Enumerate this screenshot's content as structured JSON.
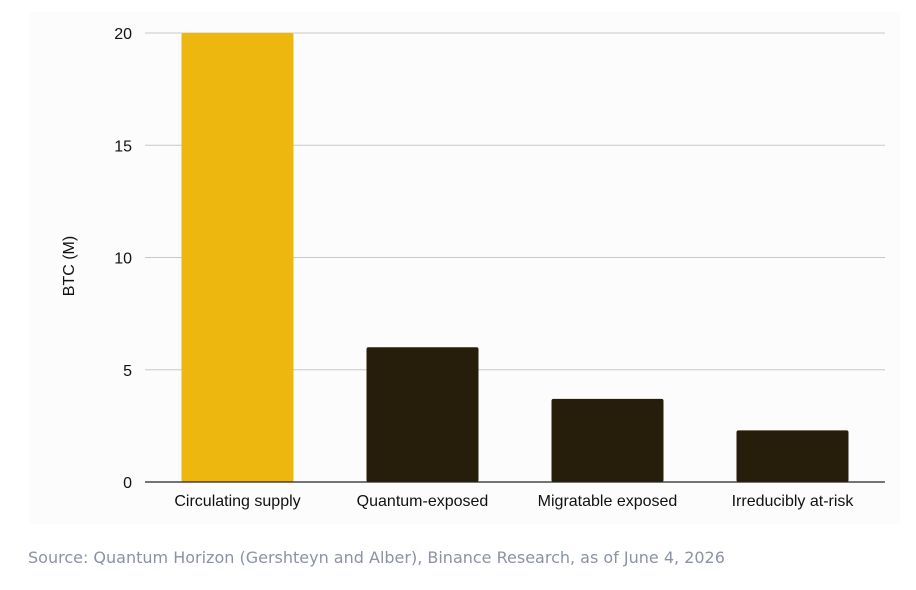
{
  "chart_data": {
    "type": "bar",
    "categories": [
      "Circulating supply",
      "Quantum-exposed",
      "Migratable exposed",
      "Irreducibly at-risk"
    ],
    "values": [
      20.0,
      6.0,
      3.7,
      2.3
    ],
    "title": "",
    "xlabel": "",
    "ylabel": "BTC (M)",
    "ylim": [
      0,
      20
    ],
    "yticks": [
      0,
      5,
      10,
      15,
      20
    ],
    "grid": true,
    "legend": "none",
    "colors": [
      "#eeb70f",
      "#261e0b",
      "#261e0b",
      "#261e0b"
    ]
  },
  "source": "Source: Quantum Horizon (Gershteyn and Alber), Binance Research, as of June 4, 2026"
}
